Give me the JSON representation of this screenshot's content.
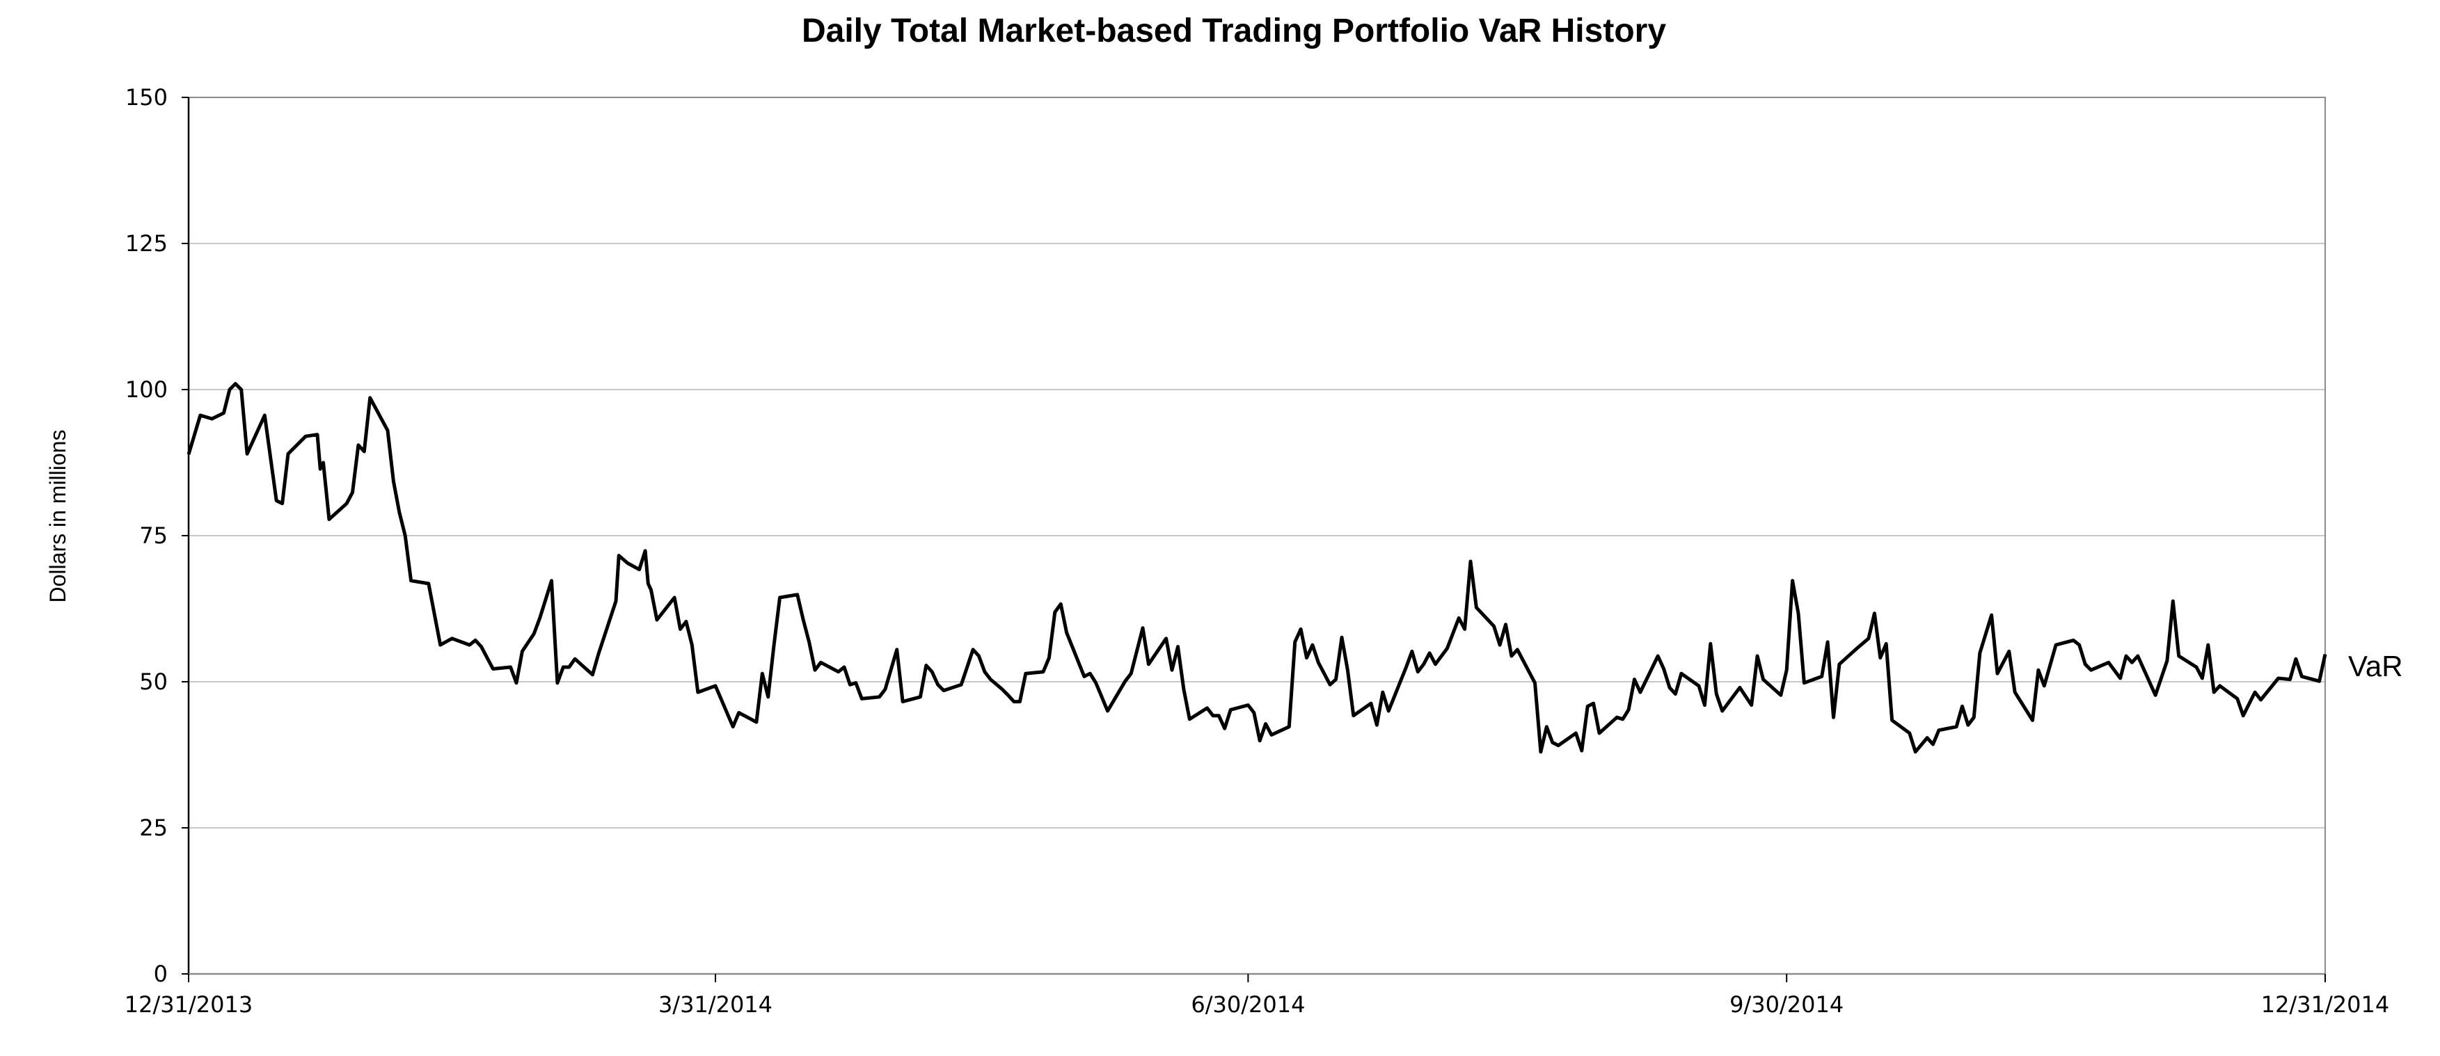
{
  "chart_data": {
    "type": "line",
    "title": "Daily Total Market-based Trading Portfolio VaR History",
    "xlabel": "",
    "ylabel": "Dollars in millions",
    "ylim": [
      0,
      150
    ],
    "yticks": [
      0,
      25,
      50,
      75,
      100,
      125,
      150
    ],
    "ytick_labels": [
      "0",
      "25",
      "50",
      "75",
      "100",
      "125",
      "150"
    ],
    "x_unit": "days since 12/31/2013",
    "xlim": [
      0,
      365
    ],
    "xticks": [
      0,
      90,
      181,
      273,
      365
    ],
    "xtick_labels": [
      "12/31/2013",
      "3/31/2014",
      "6/30/2014",
      "9/30/2014",
      "12/31/2014"
    ],
    "grid": "horizontal",
    "legend": "right",
    "series": [
      {
        "name": "VaR",
        "color": "#000000",
        "x": [
          0,
          2,
          4,
          6,
          7,
          8,
          9,
          10,
          13,
          15,
          16,
          17,
          20,
          22,
          22.5,
          23,
          24,
          27,
          28,
          29,
          30,
          31,
          34,
          35,
          36,
          37,
          38,
          41,
          43,
          45,
          48,
          49,
          50,
          52,
          55,
          56,
          57,
          59,
          60,
          62,
          63,
          64,
          65,
          66,
          69,
          70,
          73,
          73.5,
          75,
          77,
          78,
          78.5,
          79,
          80,
          83,
          84,
          85,
          86,
          87,
          90,
          93,
          94,
          97,
          98,
          99,
          100,
          101,
          104,
          105,
          106,
          107,
          108,
          111,
          112,
          113,
          114,
          115,
          118,
          119,
          121,
          122,
          125,
          126,
          127,
          128,
          129,
          132,
          134,
          135,
          136,
          137,
          139,
          140,
          141,
          142,
          143,
          146,
          147,
          148,
          149,
          150,
          153,
          154,
          155,
          157,
          160,
          161,
          163,
          164,
          167,
          168,
          169,
          170,
          171,
          174,
          175,
          176,
          177,
          178,
          181,
          182,
          183,
          184,
          185,
          188,
          189,
          190,
          191,
          192,
          193,
          195,
          196,
          197,
          198,
          199,
          202,
          203,
          204,
          205,
          208,
          209,
          210,
          211,
          212,
          213,
          215,
          217,
          218,
          219,
          220,
          223,
          224,
          225,
          226,
          227,
          230,
          231,
          232,
          233,
          234,
          237,
          238,
          239,
          240,
          241,
          244,
          245,
          246,
          247,
          248,
          251,
          252,
          253,
          254,
          255,
          258,
          259,
          260,
          261,
          262,
          265,
          267,
          268,
          269,
          272,
          273,
          274,
          275,
          276,
          279,
          280,
          281,
          282,
          285,
          287,
          288,
          289,
          290,
          291,
          294,
          295,
          297,
          298,
          299,
          302,
          303,
          304,
          305,
          306,
          308,
          309,
          311,
          312,
          315,
          316,
          317,
          319,
          322,
          323,
          324,
          325,
          328,
          330,
          331,
          332,
          333,
          336,
          338,
          339,
          340,
          343,
          344,
          345,
          346,
          347,
          350,
          351,
          353,
          354,
          357,
          359,
          360,
          361,
          364,
          365
        ],
        "values": [
          88.9,
          95.6,
          95,
          96,
          100,
          101,
          100,
          89,
          95.6,
          81,
          80.5,
          89,
          92,
          92.3,
          86.4,
          87.5,
          77.8,
          80.5,
          82.4,
          90.5,
          89.4,
          98.6,
          93,
          84.3,
          79,
          75,
          67.3,
          66.8,
          56.3,
          57.4,
          56.3,
          57.1,
          56,
          52.2,
          52.5,
          49.8,
          55.2,
          58.2,
          60.9,
          67.3,
          49.8,
          52.5,
          52.5,
          53.9,
          51.2,
          54.7,
          63.8,
          71.6,
          70.3,
          69.2,
          72.4,
          66.8,
          65.7,
          60.6,
          64.4,
          59,
          60.3,
          56.3,
          48.2,
          49.3,
          42.3,
          44.7,
          43.1,
          51.4,
          47.4,
          56.3,
          64.4,
          64.9,
          60.6,
          56.8,
          52,
          53.3,
          51.7,
          52.5,
          49.5,
          49.8,
          47.1,
          47.4,
          48.7,
          55.5,
          46.6,
          47.4,
          52.8,
          51.7,
          49.5,
          48.5,
          49.5,
          55.5,
          54.4,
          51.7,
          50.4,
          48.7,
          47.7,
          46.6,
          46.6,
          51.4,
          51.7,
          54.1,
          61.9,
          63.3,
          58.4,
          50.9,
          51.4,
          49.8,
          45,
          50.1,
          51.4,
          59.2,
          53,
          57.4,
          52,
          56,
          48.7,
          43.6,
          45.5,
          44.2,
          44.2,
          42,
          45.2,
          46,
          44.7,
          39.9,
          42.8,
          40.9,
          42.3,
          56.8,
          59,
          54.1,
          56.3,
          53.3,
          49.5,
          50.4,
          57.6,
          52,
          44.2,
          46.3,
          42.6,
          48.2,
          45,
          52.5,
          55.2,
          51.7,
          53,
          54.9,
          53,
          55.7,
          60.9,
          59,
          70.6,
          62.7,
          59.5,
          56.3,
          59.8,
          54.4,
          55.5,
          49.8,
          38,
          42.3,
          39.6,
          39.1,
          41.2,
          38.2,
          45.8,
          46.3,
          41.2,
          43.9,
          43.6,
          45.2,
          50.4,
          48.2,
          54.4,
          52.2,
          49,
          47.9,
          51.4,
          49.3,
          46,
          56.5,
          47.9,
          45,
          49,
          46,
          54.4,
          50.4,
          47.7,
          52,
          67.3,
          61.7,
          49.8,
          50.9,
          56.8,
          43.9,
          53,
          55.7,
          57.4,
          61.7,
          54.1,
          56.5,
          43.4,
          41.2,
          38,
          40.4,
          39.3,
          41.7,
          42.3,
          45.8,
          42.6,
          43.9,
          54.9,
          61.4,
          51.4,
          55.2,
          48.2,
          43.4,
          52,
          49.3,
          56.3,
          57.1,
          56.3,
          53,
          52,
          53.3,
          50.6,
          54.4,
          53.3,
          54.4,
          47.7,
          53.6,
          63.8,
          54.4,
          52.5,
          50.6,
          56.3,
          48.2,
          49.3,
          47.1,
          44.2,
          48.2,
          46.9,
          50.6,
          50.4,
          53.9,
          50.9,
          50.1,
          54.7
        ]
      }
    ]
  }
}
